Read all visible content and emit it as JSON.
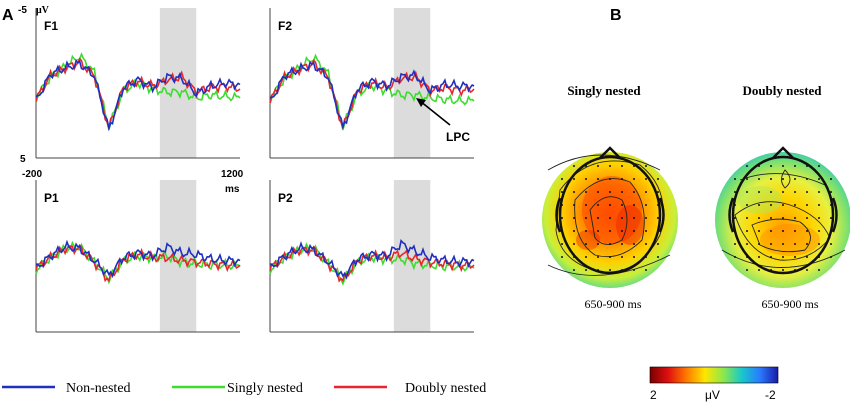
{
  "figure": {
    "panel_a_letter": "A",
    "panel_b_letter": "B"
  },
  "axis": {
    "unit": "μV",
    "y_top_label": "-5",
    "y_bottom_label": "5",
    "x_start_label": "-200",
    "x_end_label": "1200",
    "x_unit": "ms"
  },
  "annotation": {
    "lpc_label": "LPC"
  },
  "legend": [
    {
      "label": "Non-nested",
      "color": "#1f2fbf"
    },
    {
      "label": "Singly nested",
      "color": "#3ddc2e"
    },
    {
      "label": "Doubly nested",
      "color": "#e8262b"
    }
  ],
  "topomaps": [
    {
      "title": "Singly nested",
      "time_label": "650-900 ms"
    },
    {
      "title": "Doubly nested",
      "time_label": "650-900 ms"
    }
  ],
  "colorbar": {
    "min_label": "2",
    "unit_label": "μV",
    "max_label": "-2",
    "stops": [
      "#7a0000",
      "#e01010",
      "#ff7a00",
      "#ffe600",
      "#8ee84a",
      "#19c9c9",
      "#2a7cff",
      "#1a1aa8"
    ]
  },
  "chart_data": [
    {
      "type": "line",
      "electrode": "F1",
      "x_range_ms": [
        -200,
        1200
      ],
      "ylim": [
        -5,
        5
      ],
      "y_inverted": true,
      "y_unit": "μV",
      "x_unit": "ms",
      "highlight_window_ms": [
        650,
        900
      ],
      "x": [
        -200,
        -100,
        0,
        100,
        200,
        300,
        400,
        500,
        600,
        700,
        800,
        900,
        1000,
        1100,
        1200
      ],
      "series": [
        {
          "name": "Non-nested",
          "values": [
            1.2,
            -0.6,
            -1.0,
            -1.3,
            -0.5,
            3.1,
            0.3,
            -0.2,
            0.3,
            -0.4,
            -0.3,
            0.7,
            0.2,
            0.0,
            0.1
          ]
        },
        {
          "name": "Singly nested",
          "values": [
            1.0,
            -0.4,
            -1.1,
            -1.8,
            -0.7,
            2.9,
            0.5,
            0.0,
            0.4,
            0.6,
            0.6,
            1.0,
            0.8,
            0.9,
            1.0
          ]
        },
        {
          "name": "Doubly nested",
          "values": [
            1.1,
            -0.5,
            -1.0,
            -1.4,
            -0.5,
            3.0,
            0.3,
            -0.1,
            0.2,
            -0.2,
            -0.4,
            0.6,
            0.3,
            0.2,
            0.4
          ]
        }
      ]
    },
    {
      "type": "line",
      "electrode": "F2",
      "x_range_ms": [
        -200,
        1200
      ],
      "ylim": [
        -5,
        5
      ],
      "y_inverted": true,
      "y_unit": "μV",
      "x_unit": "ms",
      "highlight_window_ms": [
        650,
        900
      ],
      "x": [
        -200,
        -100,
        0,
        100,
        200,
        300,
        400,
        500,
        600,
        700,
        800,
        900,
        1000,
        1100,
        1200
      ],
      "series": [
        {
          "name": "Non-nested",
          "values": [
            1.3,
            -0.5,
            -0.9,
            -1.2,
            -0.4,
            3.0,
            0.4,
            -0.1,
            0.2,
            -0.4,
            -0.5,
            0.5,
            0.1,
            0.2,
            0.2
          ]
        },
        {
          "name": "Singly nested",
          "values": [
            1.1,
            -0.3,
            -1.0,
            -1.7,
            -0.6,
            2.9,
            0.7,
            0.2,
            0.5,
            0.8,
            0.8,
            1.0,
            1.1,
            1.2,
            1.2
          ]
        },
        {
          "name": "Doubly nested",
          "values": [
            1.2,
            -0.4,
            -0.9,
            -1.3,
            -0.4,
            3.0,
            0.5,
            0.0,
            0.3,
            -0.3,
            -0.4,
            0.5,
            0.3,
            0.5,
            0.4
          ]
        }
      ]
    },
    {
      "type": "line",
      "electrode": "P1",
      "x_range_ms": [
        -200,
        1200
      ],
      "ylim": [
        -5,
        5
      ],
      "y_inverted": true,
      "y_unit": "μV",
      "x_unit": "ms",
      "highlight_window_ms": [
        650,
        900
      ],
      "x": [
        -200,
        -100,
        0,
        100,
        200,
        300,
        400,
        500,
        600,
        700,
        800,
        900,
        1000,
        1100,
        1200
      ],
      "series": [
        {
          "name": "Non-nested",
          "values": [
            0.8,
            0.0,
            -0.6,
            -0.5,
            0.3,
            1.3,
            0.1,
            -0.2,
            0.0,
            -0.6,
            -0.2,
            -0.1,
            0.2,
            0.3,
            0.3
          ]
        },
        {
          "name": "Singly nested",
          "values": [
            0.9,
            0.1,
            -0.5,
            -0.6,
            0.4,
            1.5,
            0.3,
            0.0,
            0.1,
            0.0,
            0.4,
            0.5,
            0.6,
            0.6,
            0.7
          ]
        },
        {
          "name": "Doubly nested",
          "values": [
            0.8,
            0.1,
            -0.5,
            -0.5,
            0.4,
            1.6,
            0.2,
            -0.1,
            0.1,
            0.1,
            0.3,
            0.4,
            0.5,
            0.6,
            0.6
          ]
        }
      ]
    },
    {
      "type": "line",
      "electrode": "P2",
      "x_range_ms": [
        -200,
        1200
      ],
      "ylim": [
        -5,
        5
      ],
      "y_inverted": true,
      "y_unit": "μV",
      "x_unit": "ms",
      "highlight_window_ms": [
        650,
        900
      ],
      "x": [
        -200,
        -100,
        0,
        100,
        200,
        300,
        400,
        500,
        600,
        700,
        800,
        900,
        1000,
        1100,
        1200
      ],
      "series": [
        {
          "name": "Non-nested",
          "values": [
            0.8,
            0.0,
            -0.5,
            -0.4,
            0.4,
            1.4,
            0.2,
            -0.1,
            0.0,
            -0.8,
            -0.3,
            0.1,
            0.3,
            0.4,
            0.3
          ]
        },
        {
          "name": "Singly nested",
          "values": [
            0.9,
            0.1,
            -0.4,
            -0.5,
            0.5,
            1.6,
            0.4,
            0.1,
            0.2,
            0.2,
            0.5,
            0.6,
            0.7,
            0.7,
            0.8
          ]
        },
        {
          "name": "Doubly nested",
          "values": [
            0.8,
            0.1,
            -0.4,
            -0.4,
            0.5,
            1.6,
            0.3,
            0.0,
            0.1,
            -0.2,
            0.2,
            0.4,
            0.5,
            0.6,
            0.6
          ]
        }
      ]
    }
  ]
}
